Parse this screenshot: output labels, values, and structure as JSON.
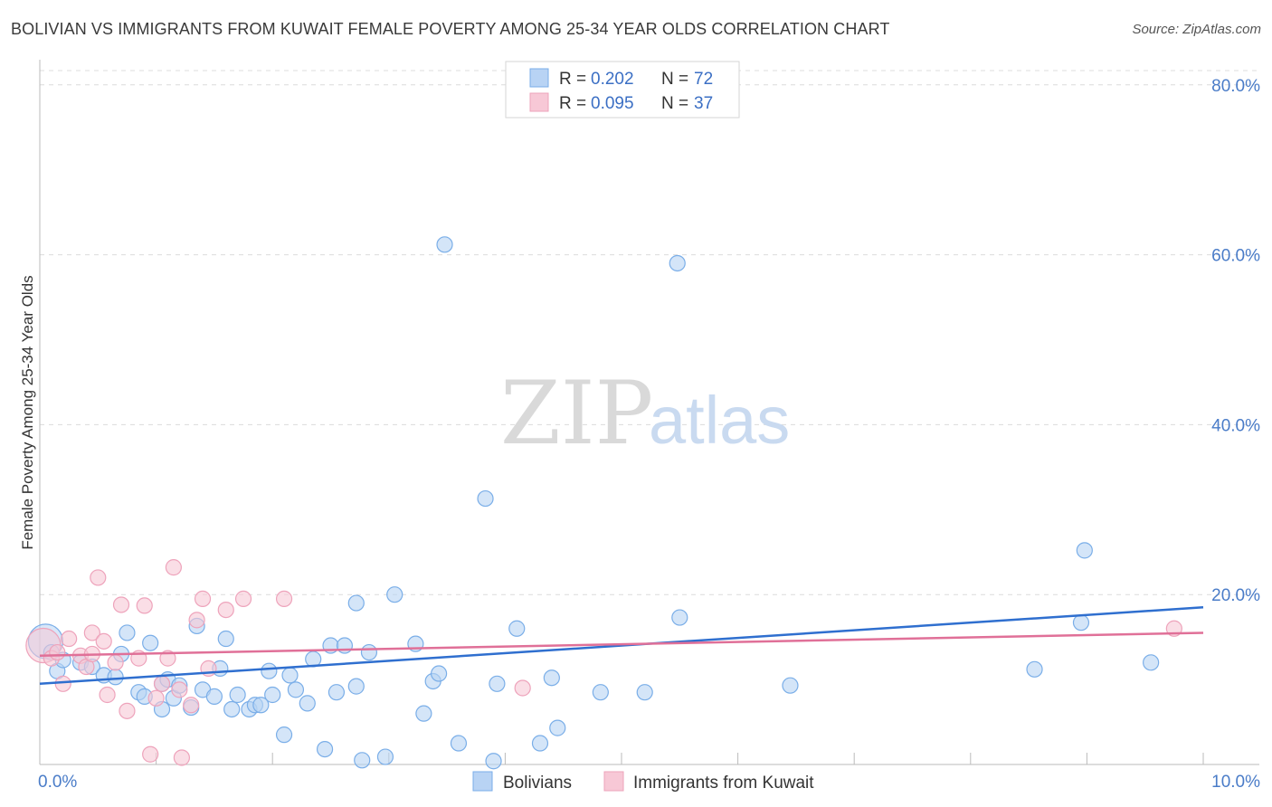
{
  "title": "BOLIVIAN VS IMMIGRANTS FROM KUWAIT FEMALE POVERTY AMONG 25-34 YEAR OLDS CORRELATION CHART",
  "source": "Source: ZipAtlas.com",
  "watermark": {
    "zip": "ZIP",
    "atlas": "atlas"
  },
  "legend": {
    "rows": [
      {
        "r_label": "R =",
        "r_value": "0.202",
        "n_label": "N =",
        "n_value": "72"
      },
      {
        "r_label": "R =",
        "r_value": "0.095",
        "n_label": "N =",
        "n_value": "37"
      }
    ]
  },
  "chart_data": {
    "type": "scatter",
    "title": "BOLIVIAN VS IMMIGRANTS FROM KUWAIT FEMALE POVERTY AMONG 25-34 YEAR OLDS CORRELATION CHART",
    "xlabel": "",
    "ylabel": "Female Poverty Among 25-34 Year Olds",
    "xlim": [
      0,
      10
    ],
    "ylim": [
      0,
      82
    ],
    "x_tick_labels": [
      {
        "value": 0,
        "label": "0.0%"
      },
      {
        "value": 10,
        "label": "10.0%"
      }
    ],
    "y_tick_labels": [
      {
        "value": 20,
        "label": "20.0%"
      },
      {
        "value": 40,
        "label": "40.0%"
      },
      {
        "value": 60,
        "label": "60.0%"
      },
      {
        "value": 80,
        "label": "80.0%"
      }
    ],
    "legend_position": "top-center",
    "series": [
      {
        "name": "Bolivians",
        "color": "#7aaee8",
        "fill": "#b8d3f4",
        "trend_color": "#2f6fcf",
        "trend": {
          "x": [
            0,
            10
          ],
          "y": [
            9.5,
            18.5
          ]
        },
        "points": [
          {
            "x": 0.05,
            "y": 14.5,
            "big": true
          },
          {
            "x": 0.1,
            "y": 13.2
          },
          {
            "x": 0.15,
            "y": 11.0
          },
          {
            "x": 0.2,
            "y": 12.3
          },
          {
            "x": 0.35,
            "y": 12.0
          },
          {
            "x": 0.45,
            "y": 11.5
          },
          {
            "x": 0.55,
            "y": 10.5
          },
          {
            "x": 0.65,
            "y": 10.3
          },
          {
            "x": 0.7,
            "y": 13.0
          },
          {
            "x": 0.75,
            "y": 15.5
          },
          {
            "x": 0.85,
            "y": 8.5
          },
          {
            "x": 0.9,
            "y": 8.0
          },
          {
            "x": 0.95,
            "y": 14.3
          },
          {
            "x": 1.05,
            "y": 9.5
          },
          {
            "x": 1.05,
            "y": 6.5
          },
          {
            "x": 1.1,
            "y": 10.0
          },
          {
            "x": 1.15,
            "y": 7.8
          },
          {
            "x": 1.2,
            "y": 9.3
          },
          {
            "x": 1.3,
            "y": 6.7
          },
          {
            "x": 1.35,
            "y": 16.3
          },
          {
            "x": 1.4,
            "y": 8.8
          },
          {
            "x": 1.5,
            "y": 8.0
          },
          {
            "x": 1.55,
            "y": 11.3
          },
          {
            "x": 1.6,
            "y": 14.8
          },
          {
            "x": 1.65,
            "y": 6.5
          },
          {
            "x": 1.7,
            "y": 8.2
          },
          {
            "x": 1.8,
            "y": 6.5
          },
          {
            "x": 1.85,
            "y": 7.0
          },
          {
            "x": 1.9,
            "y": 7.0
          },
          {
            "x": 1.97,
            "y": 11.0
          },
          {
            "x": 2.0,
            "y": 8.2
          },
          {
            "x": 2.1,
            "y": 3.5
          },
          {
            "x": 2.15,
            "y": 10.5
          },
          {
            "x": 2.2,
            "y": 8.8
          },
          {
            "x": 2.3,
            "y": 7.2
          },
          {
            "x": 2.35,
            "y": 12.4
          },
          {
            "x": 2.45,
            "y": 1.8
          },
          {
            "x": 2.5,
            "y": 14.0
          },
          {
            "x": 2.55,
            "y": 8.5
          },
          {
            "x": 2.62,
            "y": 14.0
          },
          {
            "x": 2.72,
            "y": 9.2
          },
          {
            "x": 2.72,
            "y": 19.0
          },
          {
            "x": 2.77,
            "y": 0.5
          },
          {
            "x": 2.83,
            "y": 13.2
          },
          {
            "x": 2.97,
            "y": 0.9
          },
          {
            "x": 3.05,
            "y": 20.0
          },
          {
            "x": 3.23,
            "y": 14.2
          },
          {
            "x": 3.3,
            "y": 6.0
          },
          {
            "x": 3.38,
            "y": 9.8
          },
          {
            "x": 3.43,
            "y": 10.7
          },
          {
            "x": 3.48,
            "y": 61.2
          },
          {
            "x": 3.6,
            "y": 2.5
          },
          {
            "x": 3.83,
            "y": 31.3
          },
          {
            "x": 3.9,
            "y": 0.4
          },
          {
            "x": 3.93,
            "y": 9.5
          },
          {
            "x": 4.1,
            "y": 16.0
          },
          {
            "x": 4.3,
            "y": 2.5
          },
          {
            "x": 4.4,
            "y": 10.2
          },
          {
            "x": 4.45,
            "y": 4.3
          },
          {
            "x": 4.82,
            "y": 8.5
          },
          {
            "x": 5.2,
            "y": 8.5
          },
          {
            "x": 5.48,
            "y": 59.0
          },
          {
            "x": 5.5,
            "y": 17.3
          },
          {
            "x": 6.45,
            "y": 9.3
          },
          {
            "x": 8.55,
            "y": 11.2
          },
          {
            "x": 8.95,
            "y": 16.7
          },
          {
            "x": 8.98,
            "y": 25.2
          },
          {
            "x": 9.55,
            "y": 12.0
          }
        ]
      },
      {
        "name": "Immigrants from Kuwait",
        "color": "#eea3bb",
        "fill": "#f7c8d6",
        "trend_color": "#e07098",
        "trend": {
          "x": [
            0,
            10
          ],
          "y": [
            12.8,
            15.5
          ]
        },
        "points": [
          {
            "x": 0.03,
            "y": 14.0,
            "big": true
          },
          {
            "x": 0.1,
            "y": 12.5
          },
          {
            "x": 0.15,
            "y": 13.2
          },
          {
            "x": 0.2,
            "y": 9.5
          },
          {
            "x": 0.25,
            "y": 14.8
          },
          {
            "x": 0.35,
            "y": 12.8
          },
          {
            "x": 0.4,
            "y": 11.5
          },
          {
            "x": 0.45,
            "y": 13.0
          },
          {
            "x": 0.45,
            "y": 15.5
          },
          {
            "x": 0.5,
            "y": 22.0
          },
          {
            "x": 0.55,
            "y": 14.5
          },
          {
            "x": 0.58,
            "y": 8.2
          },
          {
            "x": 0.65,
            "y": 12.0
          },
          {
            "x": 0.7,
            "y": 18.8
          },
          {
            "x": 0.75,
            "y": 6.3
          },
          {
            "x": 0.85,
            "y": 12.5
          },
          {
            "x": 0.9,
            "y": 18.7
          },
          {
            "x": 0.95,
            "y": 1.2
          },
          {
            "x": 1.0,
            "y": 7.8
          },
          {
            "x": 1.05,
            "y": 9.5
          },
          {
            "x": 1.1,
            "y": 12.5
          },
          {
            "x": 1.15,
            "y": 23.2
          },
          {
            "x": 1.2,
            "y": 8.8
          },
          {
            "x": 1.22,
            "y": 0.8
          },
          {
            "x": 1.3,
            "y": 7.0
          },
          {
            "x": 1.35,
            "y": 17.0
          },
          {
            "x": 1.4,
            "y": 19.5
          },
          {
            "x": 1.45,
            "y": 11.3
          },
          {
            "x": 1.6,
            "y": 18.2
          },
          {
            "x": 1.75,
            "y": 19.5
          },
          {
            "x": 2.1,
            "y": 19.5
          },
          {
            "x": 4.15,
            "y": 9.0
          },
          {
            "x": 9.75,
            "y": 16.0
          }
        ]
      }
    ]
  }
}
